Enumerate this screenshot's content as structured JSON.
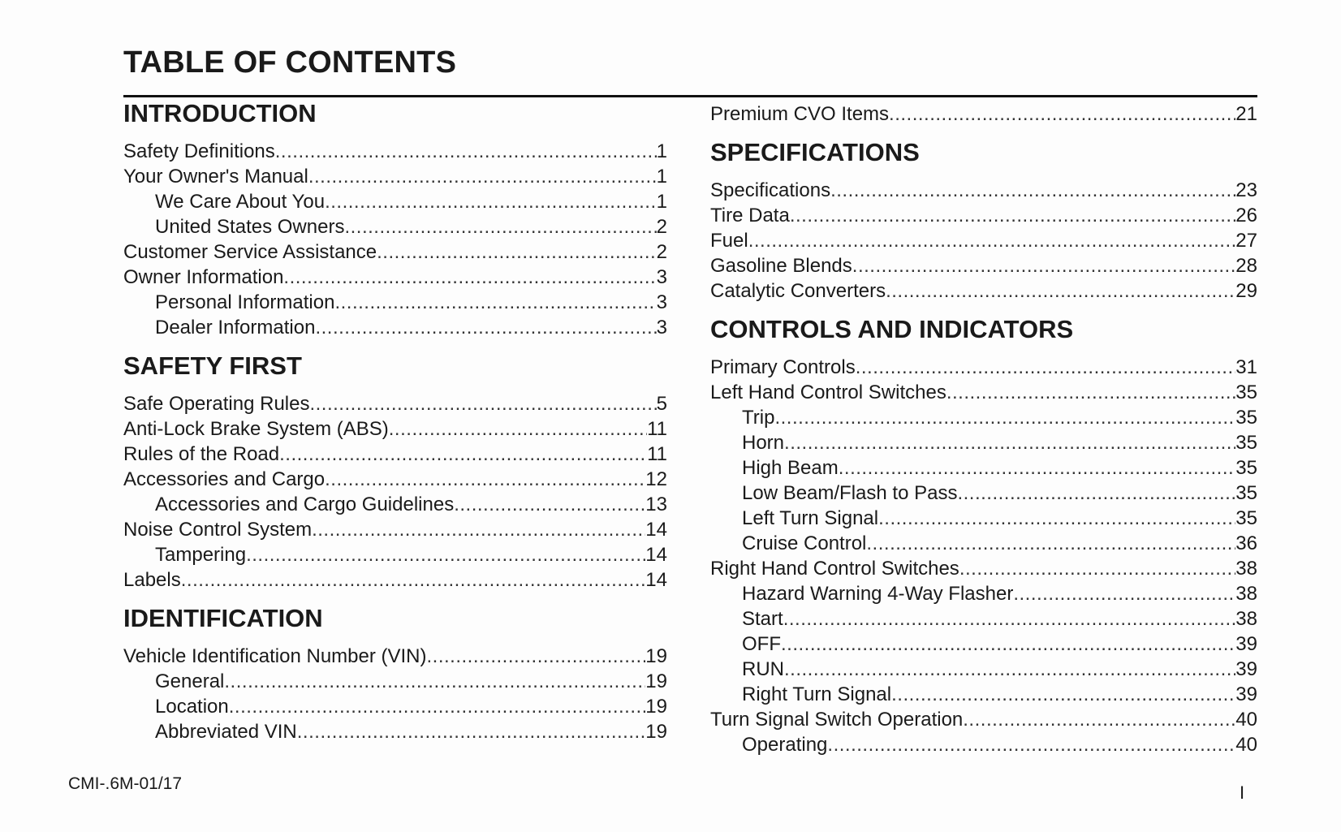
{
  "title": "TABLE OF CONTENTS",
  "left_column": [
    {
      "type": "heading",
      "text": "INTRODUCTION"
    },
    {
      "type": "item",
      "label": "Safety Definitions",
      "page": "1",
      "indent": false
    },
    {
      "type": "item",
      "label": "Your Owner's Manual",
      "page": "1",
      "indent": false
    },
    {
      "type": "item",
      "label": "We Care About You",
      "page": "1",
      "indent": true
    },
    {
      "type": "item",
      "label": "United States Owners",
      "page": "2",
      "indent": true
    },
    {
      "type": "item",
      "label": "Customer Service Assistance",
      "page": "2",
      "indent": false
    },
    {
      "type": "item",
      "label": "Owner Information",
      "page": "3",
      "indent": false
    },
    {
      "type": "item",
      "label": "Personal Information",
      "page": "3",
      "indent": true
    },
    {
      "type": "item",
      "label": "Dealer Information",
      "page": "3",
      "indent": true
    },
    {
      "type": "heading",
      "text": "SAFETY FIRST"
    },
    {
      "type": "item",
      "label": "Safe Operating Rules",
      "page": "5",
      "indent": false
    },
    {
      "type": "item",
      "label": "Anti-Lock Brake System (ABS)",
      "page": "11",
      "indent": false
    },
    {
      "type": "item",
      "label": "Rules of the Road",
      "page": "11",
      "indent": false
    },
    {
      "type": "item",
      "label": "Accessories and Cargo",
      "page": "12",
      "indent": false
    },
    {
      "type": "item",
      "label": "Accessories and Cargo Guidelines",
      "page": "13",
      "indent": true
    },
    {
      "type": "item",
      "label": "Noise Control System",
      "page": "14",
      "indent": false
    },
    {
      "type": "item",
      "label": "Tampering",
      "page": "14",
      "indent": true
    },
    {
      "type": "item",
      "label": "Labels",
      "page": "14",
      "indent": false
    },
    {
      "type": "heading",
      "text": "IDENTIFICATION"
    },
    {
      "type": "item",
      "label": "Vehicle Identification Number (VIN)",
      "page": "19",
      "indent": false
    },
    {
      "type": "item",
      "label": "General",
      "page": "19",
      "indent": true
    },
    {
      "type": "item",
      "label": "Location",
      "page": "19",
      "indent": true
    },
    {
      "type": "item",
      "label": "Abbreviated VIN",
      "page": "19",
      "indent": true
    }
  ],
  "right_column": [
    {
      "type": "item",
      "label": "Premium CVO Items",
      "page": "21",
      "indent": false
    },
    {
      "type": "heading",
      "text": "SPECIFICATIONS"
    },
    {
      "type": "item",
      "label": "Specifications",
      "page": "23",
      "indent": false
    },
    {
      "type": "item",
      "label": "Tire Data",
      "page": "26",
      "indent": false
    },
    {
      "type": "item",
      "label": "Fuel",
      "page": "27",
      "indent": false
    },
    {
      "type": "item",
      "label": "Gasoline Blends",
      "page": "28",
      "indent": false
    },
    {
      "type": "item",
      "label": "Catalytic Converters",
      "page": "29",
      "indent": false
    },
    {
      "type": "heading",
      "text": "CONTROLS AND INDICATORS"
    },
    {
      "type": "item",
      "label": "Primary Controls",
      "page": "31",
      "indent": false
    },
    {
      "type": "item",
      "label": "Left Hand Control Switches",
      "page": "35",
      "indent": false
    },
    {
      "type": "item",
      "label": "Trip",
      "page": "35",
      "indent": true
    },
    {
      "type": "item",
      "label": "Horn",
      "page": "35",
      "indent": true
    },
    {
      "type": "item",
      "label": "High Beam",
      "page": "35",
      "indent": true
    },
    {
      "type": "item",
      "label": "Low Beam/Flash to Pass",
      "page": "35",
      "indent": true
    },
    {
      "type": "item",
      "label": "Left Turn Signal",
      "page": "35",
      "indent": true
    },
    {
      "type": "item",
      "label": "Cruise Control",
      "page": "36",
      "indent": true
    },
    {
      "type": "item",
      "label": "Right Hand Control Switches",
      "page": "38",
      "indent": false
    },
    {
      "type": "item",
      "label": "Hazard Warning 4-Way Flasher",
      "page": "38",
      "indent": true
    },
    {
      "type": "item",
      "label": "Start",
      "page": "38",
      "indent": true
    },
    {
      "type": "item",
      "label": "OFF",
      "page": "39",
      "indent": true
    },
    {
      "type": "item",
      "label": "RUN",
      "page": "39",
      "indent": true
    },
    {
      "type": "item",
      "label": "Right Turn Signal",
      "page": "39",
      "indent": true
    },
    {
      "type": "item",
      "label": "Turn Signal Switch Operation",
      "page": "40",
      "indent": false
    },
    {
      "type": "item",
      "label": "Operating",
      "page": "40",
      "indent": true
    }
  ],
  "footer": {
    "code": "CMI-.6M-01/17",
    "page_number": "I"
  }
}
